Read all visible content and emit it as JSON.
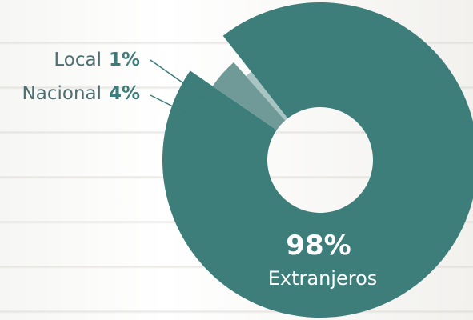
{
  "chart_data": {
    "type": "pie",
    "categories": [
      "Extranjeros",
      "Nacional",
      "Local"
    ],
    "values": [
      98,
      4,
      1
    ],
    "labels": [
      {
        "name": "Local",
        "value_text": "1%"
      },
      {
        "name": "Nacional",
        "value_text": "4%"
      },
      {
        "name": "Extranjeros",
        "value_text": "98%"
      }
    ],
    "colors": {
      "extranjeros": "#3d7e7b",
      "nacional": "#6f9a98",
      "local": "#a9c5c3",
      "label_name": "#4f6f70",
      "label_value": "#3a7d7b",
      "leader": "#3a7d7b"
    }
  }
}
